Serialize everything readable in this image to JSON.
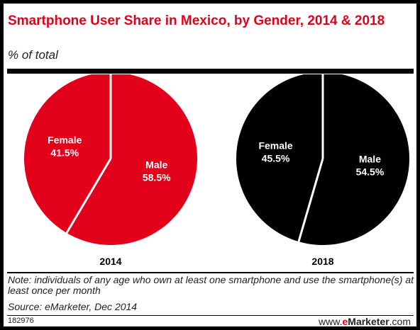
{
  "title": "Smartphone User Share in Mexico, by Gender, 2014 & 2018",
  "subtitle": "% of total",
  "note": "Note: individuals of any age who own at least one smartphone and use the smartphone(s) at least once per month",
  "source": "Source: eMarketer, Dec 2014",
  "chart_id": "182976",
  "brand": {
    "prefix": "www.",
    "e": "e",
    "name": "Marketer",
    "suffix": ".com"
  },
  "colors": {
    "accent": "#e3001b",
    "pie_2014": "#e3001b",
    "pie_2018": "#000000",
    "divider": "#ffffff"
  },
  "chart_data": [
    {
      "type": "pie",
      "title": "2014",
      "unit": "% of total",
      "slices": [
        {
          "label": "Male",
          "value": 58.5,
          "display": "58.5%"
        },
        {
          "label": "Female",
          "value": 41.5,
          "display": "41.5%"
        }
      ]
    },
    {
      "type": "pie",
      "title": "2018",
      "unit": "% of total",
      "slices": [
        {
          "label": "Male",
          "value": 54.5,
          "display": "54.5%"
        },
        {
          "label": "Female",
          "value": 45.5,
          "display": "45.5%"
        }
      ]
    }
  ]
}
